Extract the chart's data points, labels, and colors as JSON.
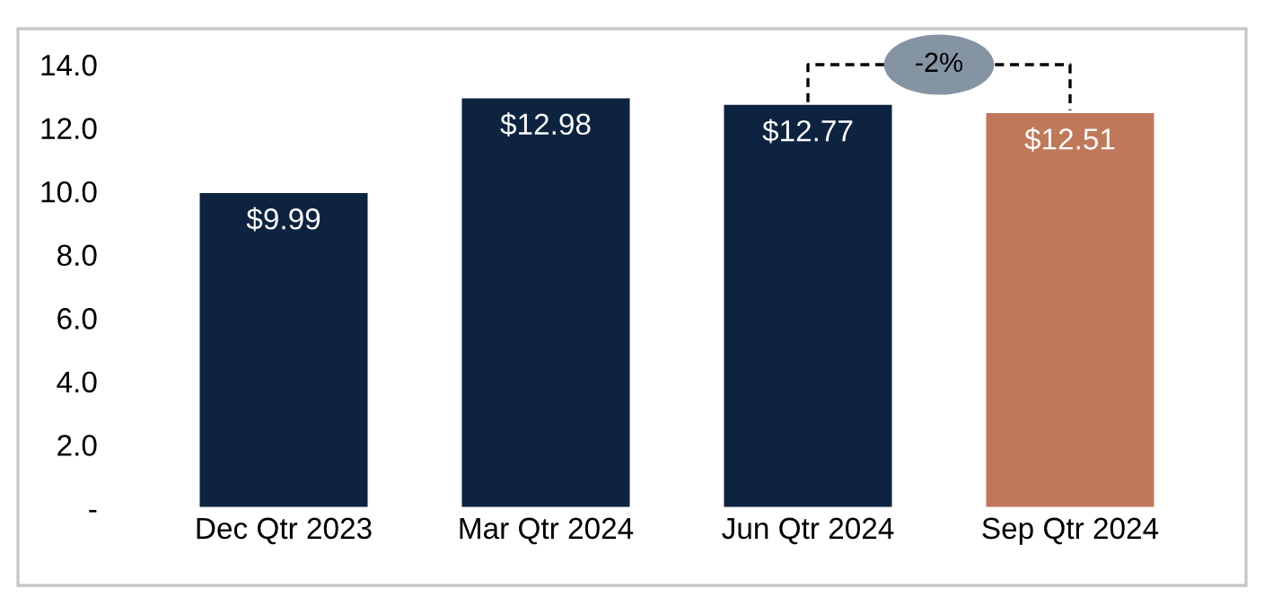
{
  "chart_data": {
    "type": "bar",
    "categories": [
      "Dec Qtr 2023",
      "Mar Qtr 2024",
      "Jun Qtr 2024",
      "Sep Qtr 2024"
    ],
    "values": [
      9.99,
      12.98,
      12.77,
      12.51
    ],
    "colors": [
      "#0d2340",
      "#0d2340",
      "#0d2340",
      "#c0785a"
    ],
    "value_labels": [
      "$9.99",
      "$12.98",
      "$12.77",
      "$12.51"
    ],
    "ylim": [
      0,
      14
    ],
    "yticks": [
      {
        "value": 0,
        "label": "-"
      },
      {
        "value": 2,
        "label": "2.0"
      },
      {
        "value": 4,
        "label": "4.0"
      },
      {
        "value": 6,
        "label": "6.0"
      },
      {
        "value": 8,
        "label": "8.0"
      },
      {
        "value": 10,
        "label": "10.0"
      },
      {
        "value": 12,
        "label": "12.0"
      },
      {
        "value": 14,
        "label": "14.0"
      }
    ],
    "grid": false,
    "annotations": [
      "-2%"
    ]
  }
}
